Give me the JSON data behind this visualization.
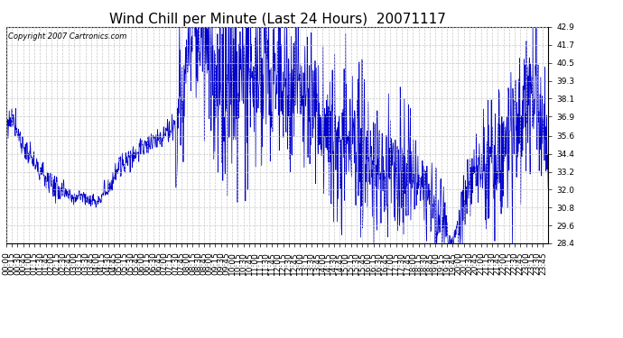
{
  "title": "Wind Chill per Minute (Last 24 Hours)  20071117",
  "copyright_text": "Copyright 2007 Cartronics.com",
  "line_color": "#0000cc",
  "bg_color": "#ffffff",
  "plot_bg_color": "#ffffff",
  "grid_color": "#c8c8c8",
  "ylim": [
    28.4,
    42.9
  ],
  "yticks": [
    28.4,
    29.6,
    30.8,
    32.0,
    33.2,
    34.4,
    35.6,
    36.9,
    38.1,
    39.3,
    40.5,
    41.7,
    42.9
  ],
  "title_fontsize": 11,
  "tick_fontsize": 6.5,
  "copyright_fontsize": 6.0
}
